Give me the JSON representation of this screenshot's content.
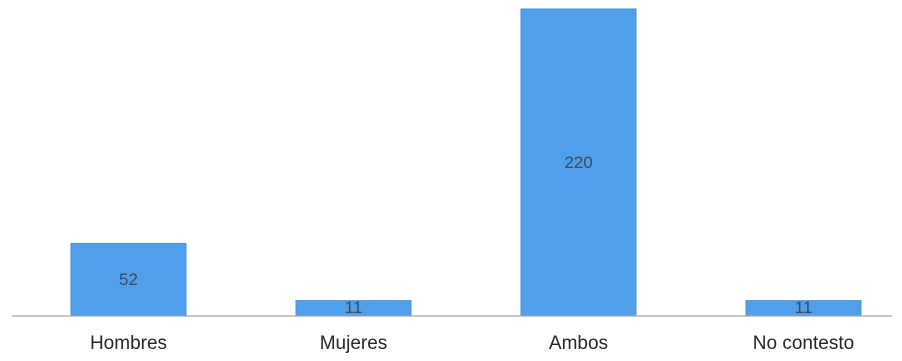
{
  "chart_data": {
    "type": "bar",
    "title": "",
    "xlabel": "",
    "ylabel": "",
    "categories": [
      "Hombres",
      "Mujeres",
      "Ambos",
      "No contesto"
    ],
    "values": [
      52,
      11,
      220,
      11
    ],
    "data_labels": [
      "52",
      "11",
      "220",
      "11"
    ],
    "ylim": [
      0,
      220
    ],
    "grid": false,
    "legend": "none",
    "bar_color": "#4f9fea",
    "axis_color": "#a6a6a6"
  }
}
